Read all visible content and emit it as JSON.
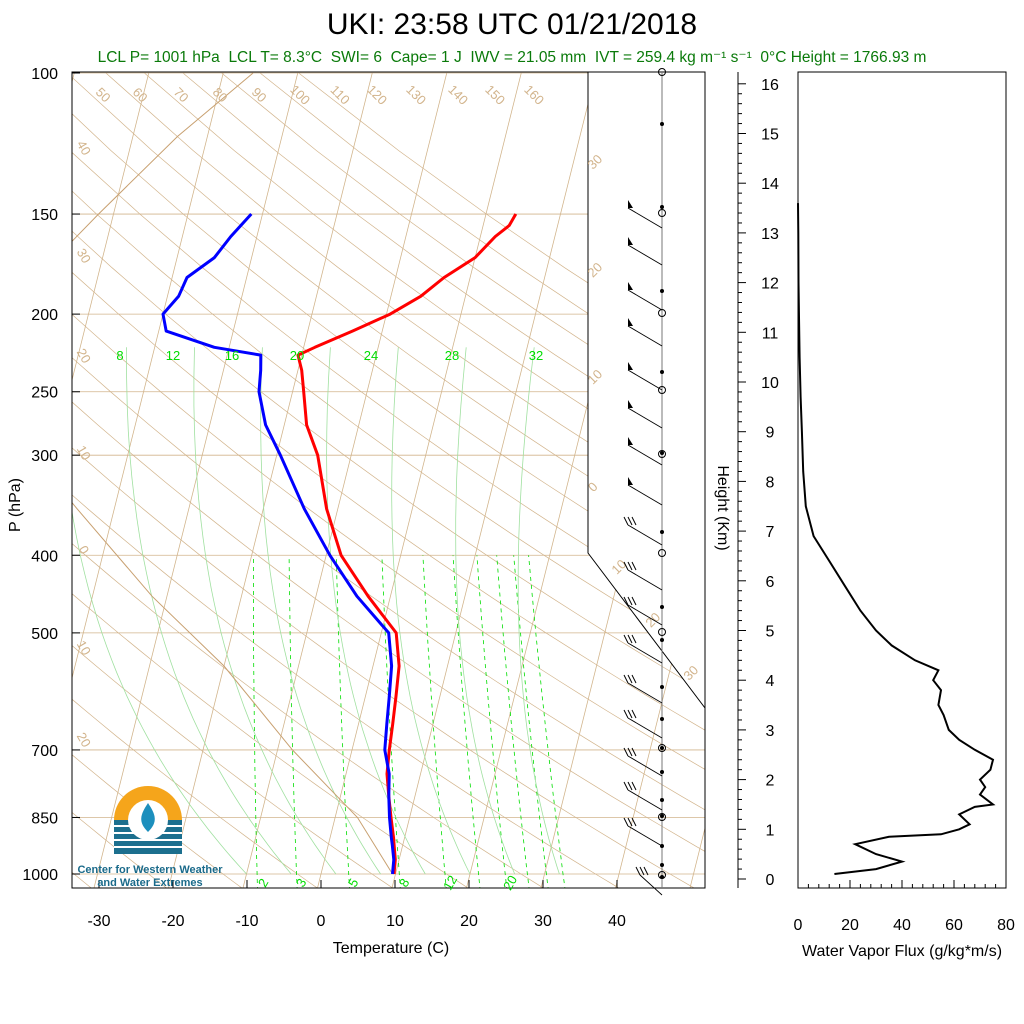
{
  "title": "UKI: 23:58 UTC 01/21/2018",
  "stats": {
    "lcl_p": "LCL P= 1001 hPa",
    "lcl_t": "LCL T= 8.3°C",
    "swi": "SWI= 6",
    "cape": "Cape= 1 J",
    "iwv": "IWV = 21.05 mm",
    "ivt": "IVT = 259.4 kg m⁻¹ s⁻¹",
    "zero_height": "0°C Height = 1766.93 m"
  },
  "logo": {
    "line1": "Center for Western Weather",
    "line2": "and Water Extremes"
  },
  "colors": {
    "temperature": "#ff0000",
    "dewpoint": "#0000ff",
    "isotherm": "#d2b48c",
    "mixing_ratio": "#00dd00",
    "moist_adiabat": "#a0e0a0",
    "subtitle_text": "#0a7a0a"
  },
  "chart_data": [
    {
      "type": "line",
      "name": "skew-t",
      "xlabel": "Temperature (C)",
      "ylabel": "P (hPa)",
      "x_ticks": [
        "-30",
        "-20",
        "-10",
        "0",
        "10",
        "20",
        "30",
        "40"
      ],
      "y_ticks": [
        "100",
        "150",
        "200",
        "250",
        "300",
        "400",
        "500",
        "700",
        "850",
        "1000"
      ],
      "dry_adiabat_labels": [
        "50",
        "60",
        "70",
        "80",
        "90",
        "100",
        "110",
        "120",
        "130",
        "140",
        "150",
        "160"
      ],
      "right_theta_labels": [
        "30",
        "20",
        "10",
        "0",
        "10",
        "20",
        "30"
      ],
      "left_theta_labels": [
        "40",
        "30",
        "20",
        "10",
        "0",
        "10",
        "20"
      ],
      "mixing_ratio_top_labels": [
        "8",
        "12",
        "16",
        "20",
        "24",
        "28",
        "32"
      ],
      "mixing_ratio_bottom_labels": [
        "2",
        "3",
        "5",
        "8",
        "12",
        "20"
      ],
      "series": [
        {
          "name": "Temperature",
          "points": [
            [
              9.8,
              1000
            ],
            [
              9.5,
              960
            ],
            [
              9.0,
              930
            ],
            [
              8.5,
              900
            ],
            [
              7.5,
              850
            ],
            [
              6.5,
              800
            ],
            [
              5.5,
              750
            ],
            [
              5.0,
              700
            ],
            [
              4.6,
              650
            ],
            [
              4.1,
              600
            ],
            [
              3.5,
              550
            ],
            [
              2.0,
              500
            ],
            [
              -3.0,
              450
            ],
            [
              -8.0,
              400
            ],
            [
              -11.5,
              350
            ],
            [
              -14.5,
              300
            ],
            [
              -17.0,
              275
            ],
            [
              -18.5,
              250
            ],
            [
              -19.5,
              235
            ],
            [
              -20.5,
              225
            ],
            [
              -18.5,
              220
            ],
            [
              -14.0,
              210
            ],
            [
              -9.5,
              200
            ],
            [
              -6.0,
              190
            ],
            [
              -3.5,
              180
            ],
            [
              0.0,
              170
            ],
            [
              2.0,
              160
            ],
            [
              3.5,
              155
            ],
            [
              4.0,
              150
            ]
          ]
        },
        {
          "name": "Dewpoint",
          "points": [
            [
              9.6,
              1000
            ],
            [
              9.3,
              960
            ],
            [
              8.6,
              920
            ],
            [
              8.2,
              900
            ],
            [
              7.3,
              850
            ],
            [
              6.5,
              800
            ],
            [
              5.8,
              750
            ],
            [
              4.4,
              700
            ],
            [
              3.8,
              650
            ],
            [
              3.2,
              600
            ],
            [
              2.5,
              550
            ],
            [
              1.0,
              500
            ],
            [
              -4.5,
              450
            ],
            [
              -9.5,
              400
            ],
            [
              -14.5,
              350
            ],
            [
              -19.5,
              300
            ],
            [
              -22.5,
              275
            ],
            [
              -24.5,
              250
            ],
            [
              -25.0,
              235
            ],
            [
              -25.5,
              225
            ],
            [
              -32.0,
              220
            ],
            [
              -39.0,
              210
            ],
            [
              -40.0,
              200
            ],
            [
              -38.5,
              190
            ],
            [
              -38.0,
              180
            ],
            [
              -35.0,
              170
            ],
            [
              -33.5,
              160
            ],
            [
              -31.5,
              150
            ]
          ]
        }
      ]
    },
    {
      "type": "line",
      "name": "water-vapor-flux",
      "xlabel": "Water Vapor Flux (g/kg*m/s)",
      "ylabel": "Height (Km)",
      "xlim": [
        0,
        80
      ],
      "ylim": [
        0,
        16
      ],
      "x_ticks": [
        "0",
        "20",
        "40",
        "60",
        "80"
      ],
      "y_ticks": [
        "0",
        "1",
        "2",
        "3",
        "4",
        "5",
        "6",
        "7",
        "8",
        "9",
        "10",
        "11",
        "12",
        "13",
        "14",
        "15",
        "16"
      ],
      "points": [
        [
          14,
          0.1
        ],
        [
          30,
          0.2
        ],
        [
          40,
          0.35
        ],
        [
          30,
          0.5
        ],
        [
          22,
          0.7
        ],
        [
          35,
          0.85
        ],
        [
          55,
          0.9
        ],
        [
          62,
          1.0
        ],
        [
          66,
          1.1
        ],
        [
          62,
          1.3
        ],
        [
          68,
          1.45
        ],
        [
          75,
          1.5
        ],
        [
          70,
          1.7
        ],
        [
          72,
          1.85
        ],
        [
          70,
          2.0
        ],
        [
          74,
          2.2
        ],
        [
          75,
          2.4
        ],
        [
          68,
          2.6
        ],
        [
          62,
          2.8
        ],
        [
          58,
          3.0
        ],
        [
          56,
          3.3
        ],
        [
          54,
          3.5
        ],
        [
          55,
          3.8
        ],
        [
          52,
          4.0
        ],
        [
          54,
          4.2
        ],
        [
          45,
          4.4
        ],
        [
          36,
          4.7
        ],
        [
          30,
          5.0
        ],
        [
          24,
          5.4
        ],
        [
          18,
          5.9
        ],
        [
          12,
          6.4
        ],
        [
          6,
          6.9
        ],
        [
          3,
          7.5
        ],
        [
          2,
          8.2
        ],
        [
          1.5,
          9.0
        ],
        [
          1,
          9.7
        ],
        [
          0.6,
          10.5
        ],
        [
          0.4,
          11.3
        ],
        [
          0.2,
          12.0
        ],
        [
          0.1,
          13.0
        ],
        [
          0,
          13.6
        ]
      ]
    }
  ]
}
